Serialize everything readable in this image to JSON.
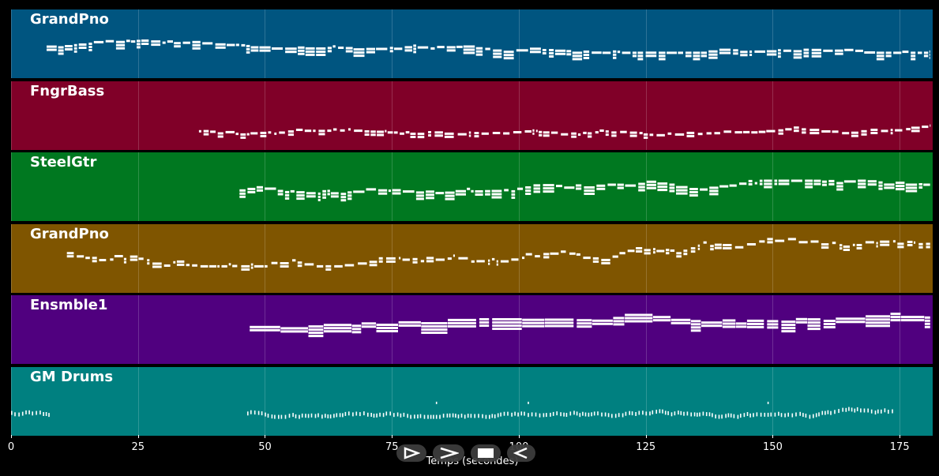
{
  "tracks": [
    {
      "name": "GrandPno",
      "color": "#005580",
      "density": "dense",
      "start": 7,
      "end": 181,
      "bandTop": 0.46,
      "bandBottom": 0.66
    },
    {
      "name": "FngrBass",
      "color": "#800028",
      "density": "sparse",
      "start": 37,
      "end": 181,
      "bandTop": 0.62,
      "bandBottom": 0.82
    },
    {
      "name": "SteelGtr",
      "color": "#007820",
      "density": "dense",
      "start": 45,
      "end": 181,
      "bandTop": 0.42,
      "bandBottom": 0.72
    },
    {
      "name": "GrandPno",
      "color": "#7f5500",
      "density": "sparse",
      "start": 11,
      "end": 181,
      "bandTop": 0.2,
      "bandBottom": 0.62
    },
    {
      "name": "Ensmble1",
      "color": "#50007f",
      "density": "block",
      "start": 47,
      "end": 181,
      "bandTop": 0.3,
      "bandBottom": 0.68
    },
    {
      "name": "GM Drums",
      "color": "#008080",
      "density": "drums",
      "start": 0,
      "end": 174,
      "bandTop": 0.55,
      "bandBottom": 0.72
    }
  ],
  "xaxis": {
    "label": "Temps (secondes)",
    "min": 0,
    "max": 181.5,
    "ticks": [
      {
        "value": 0,
        "label": "0"
      },
      {
        "value": 25,
        "label": "25"
      },
      {
        "value": 50,
        "label": "50"
      },
      {
        "value": 75,
        "label": "75"
      },
      {
        "value": 100,
        "label": "100"
      },
      {
        "value": 125,
        "label": "125"
      },
      {
        "value": 150,
        "label": "150"
      },
      {
        "value": 175,
        "label": "175"
      }
    ]
  },
  "controls": [
    {
      "id": "play",
      "icon": "play-icon"
    },
    {
      "id": "forward",
      "icon": "forward-icon"
    },
    {
      "id": "stop",
      "icon": "stop-icon"
    },
    {
      "id": "rewind",
      "icon": "rewind-icon"
    }
  ]
}
